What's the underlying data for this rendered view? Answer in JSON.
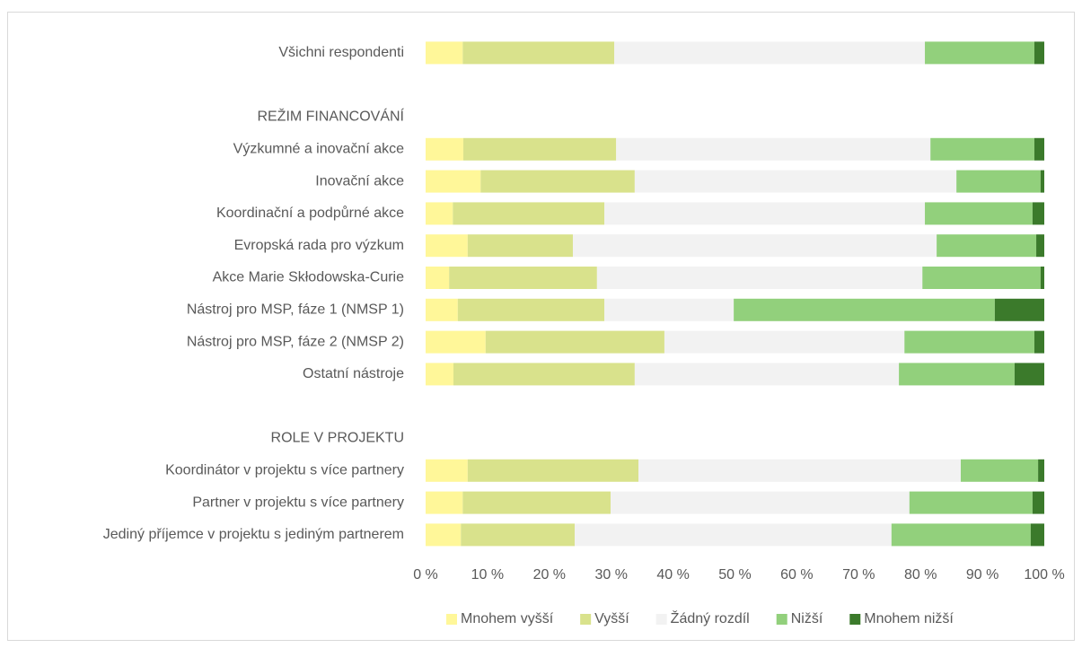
{
  "chart_data": {
    "type": "bar",
    "orientation": "horizontal",
    "stacked": true,
    "categories": [
      "Všichni respondenti",
      null,
      "REŽIM FINANCOVÁNÍ",
      "Výzkumné a inovační akce",
      "Inovační akce",
      "Koordinační a podpůrné akce",
      "Evropská rada pro výzkum",
      "Akce Marie Skłodowska-Curie",
      "Nástroj pro MSP, fáze 1 (NMSP 1)",
      "Nástroj pro MSP, fáze 2  (NMSP 2)",
      "Ostatní nástroje",
      null,
      "ROLE V PROJEKTU",
      "Koordinátor v projektu s více partnery",
      "Partner v projektu s více partnery",
      "Jediný příjemce v projektu s jediným partnerem"
    ],
    "series": [
      {
        "name": "Mnohem vyšší",
        "color": "#fff799",
        "values": [
          6.0,
          null,
          null,
          6.1,
          8.9,
          4.4,
          6.8,
          3.8,
          5.2,
          9.7,
          4.5,
          null,
          null,
          6.8,
          6.0,
          5.7
        ]
      },
      {
        "name": "Vyšší",
        "color": "#d9e28c",
        "values": [
          24.5,
          null,
          null,
          24.7,
          24.9,
          24.5,
          17.0,
          23.9,
          23.7,
          28.9,
          29.3,
          null,
          null,
          27.6,
          23.9,
          18.4
        ]
      },
      {
        "name": "Žádný rozdíl",
        "color": "#f2f2f2",
        "values": [
          50.2,
          null,
          null,
          50.8,
          52.0,
          51.8,
          58.8,
          52.6,
          20.9,
          38.8,
          42.7,
          null,
          null,
          52.1,
          48.3,
          51.2
        ]
      },
      {
        "name": "Nižší",
        "color": "#92d07c",
        "values": [
          17.7,
          null,
          null,
          16.8,
          13.6,
          17.4,
          16.1,
          19.1,
          42.2,
          21.0,
          18.7,
          null,
          null,
          12.5,
          19.9,
          22.5
        ]
      },
      {
        "name": "Mnohem nižší",
        "color": "#3b7a2b",
        "values": [
          1.6,
          null,
          null,
          1.6,
          0.6,
          1.9,
          1.3,
          0.6,
          8.0,
          1.6,
          4.8,
          null,
          null,
          1.0,
          1.9,
          2.2
        ]
      }
    ],
    "xlim": [
      0,
      100
    ],
    "xticks": [
      {
        "value": 0,
        "label": "0 %"
      },
      {
        "value": 10,
        "label": "10 %"
      },
      {
        "value": 20,
        "label": "20 %"
      },
      {
        "value": 30,
        "label": "30 %"
      },
      {
        "value": 40,
        "label": "40 %"
      },
      {
        "value": 50,
        "label": "50 %"
      },
      {
        "value": 60,
        "label": "60 %"
      },
      {
        "value": 70,
        "label": "70 %"
      },
      {
        "value": 80,
        "label": "80 %"
      },
      {
        "value": 90,
        "label": "90 %"
      },
      {
        "value": 100,
        "label": "100 %"
      }
    ],
    "grid": false,
    "legend": "bottom"
  }
}
